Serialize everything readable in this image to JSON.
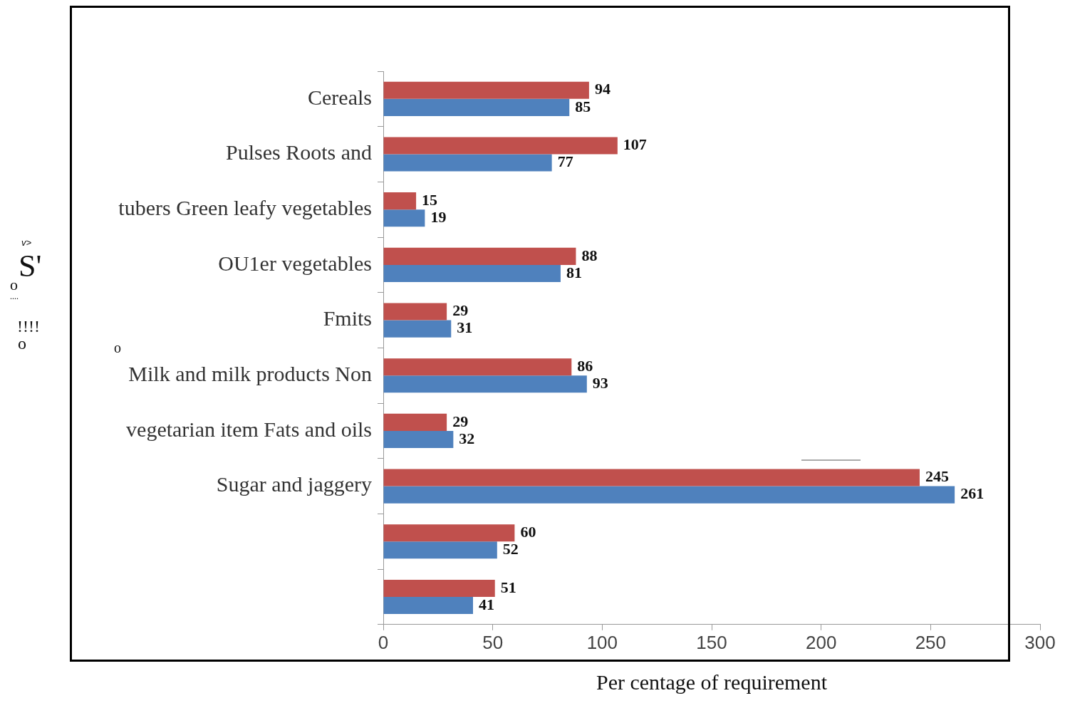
{
  "chart_data": {
    "type": "bar",
    "orientation": "horizontal",
    "categories": [
      "Cereals",
      "Pulses Roots and",
      "tubers Green leafy vegetables",
      "OU1er vegetables",
      "Fmits",
      "Milk and milk products Non",
      "vegetarian item Fats and oils",
      "Sugar and jaggery",
      null,
      null
    ],
    "series": [
      {
        "color": "#c0504d",
        "values": [
          94,
          107,
          15,
          88,
          29,
          86,
          29,
          245,
          60,
          51
        ]
      },
      {
        "color": "#4f81bd",
        "values": [
          85,
          77,
          19,
          81,
          31,
          93,
          32,
          261,
          52,
          41
        ]
      }
    ],
    "xlabel": "Per centage of requirement",
    "xlim": [
      0,
      300
    ],
    "xticks": [
      0,
      50,
      100,
      150,
      200,
      250,
      300
    ],
    "data_labels": true,
    "annotations": [
      "v>",
      "S'",
      "o",
      "....",
      "!!!!",
      "o",
      "o"
    ]
  }
}
